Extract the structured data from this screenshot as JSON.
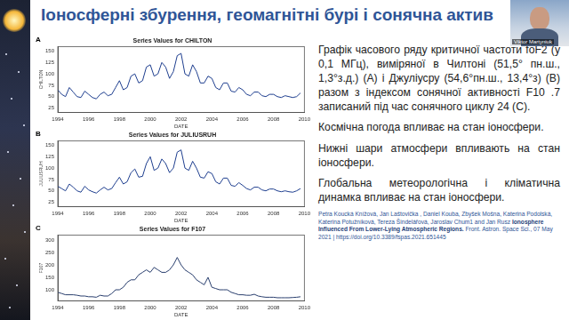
{
  "title": "Іоносферні збурення, геомагнітні бурі і сонячна актив",
  "video": {
    "name": "Viktor Martyniuk"
  },
  "paragraphs": [
    "Графік часового ряду критичної частоти foF2 (у 0,1 МГц), виміряної в Чилтоні (51,5° пн.ш., 1,3°з.д.) (A) і Джуліусру (54,6°пн.ш., 13,4°з) (B) разом з індексом сонячної активності F10 .7 записаний під час сонячного циклу 24 (C).",
    "Космічна погода впливає на стан іоносфери.",
    "Нижні шари атмосфери впливають на стан іоносфери.",
    "Глобальна метеорологічна і кліматична динамка впливає на стан іоносфери."
  ],
  "citation": {
    "authors": "Petra Koucká Knížová, Jan Laštovička , Daniel Kouba, Zbyšek Mošna, Katerina Podolská, Katerina Potužníková, Tereza Šindelářová, Jaroslav Chum1 and Jan Rusz",
    "article": "Ionosphere Influenced From Lower-Lying Atmospheric Regions.",
    "rest": "Front. Astron. Space Sci., 07 May 2021 | https://doi.org/10.3389/fspas.2021.651445"
  },
  "chart_data": [
    {
      "type": "line",
      "panel": "A",
      "title": "Series Values for CHILTON",
      "x_label": "DATE",
      "y_label": "CHILTON",
      "color": "#1f3f8f",
      "grid": false,
      "x": [
        1994,
        1994.25,
        1994.5,
        1994.75,
        1995,
        1995.25,
        1995.5,
        1995.75,
        1996,
        1996.25,
        1996.5,
        1996.75,
        1997,
        1997.25,
        1997.5,
        1997.75,
        1998,
        1998.25,
        1998.5,
        1998.75,
        1999,
        1999.25,
        1999.5,
        1999.75,
        2000,
        2000.25,
        2000.5,
        2000.75,
        2001,
        2001.25,
        2001.5,
        2001.75,
        2002,
        2002.25,
        2002.5,
        2002.75,
        2003,
        2003.25,
        2003.5,
        2003.75,
        2004,
        2004.25,
        2004.5,
        2004.75,
        2005,
        2005.25,
        2005.5,
        2005.75,
        2006,
        2006.25,
        2006.5,
        2006.75,
        2007,
        2007.25,
        2007.5,
        2007.75,
        2008,
        2008.25,
        2008.5,
        2008.75,
        2009,
        2009.25,
        2009.5,
        2009.75
      ],
      "values": [
        65,
        55,
        50,
        70,
        60,
        50,
        48,
        62,
        55,
        48,
        45,
        55,
        60,
        52,
        55,
        70,
        85,
        65,
        70,
        95,
        100,
        80,
        85,
        115,
        120,
        95,
        100,
        125,
        115,
        90,
        105,
        140,
        145,
        100,
        95,
        120,
        105,
        80,
        80,
        95,
        90,
        70,
        65,
        80,
        80,
        62,
        60,
        70,
        65,
        55,
        52,
        60,
        60,
        52,
        50,
        55,
        55,
        50,
        48,
        52,
        50,
        48,
        50,
        58
      ],
      "xlim": [
        1994,
        2010
      ],
      "xticks": [
        1994,
        1996,
        1998,
        2000,
        2002,
        2004,
        2006,
        2008,
        2010
      ],
      "ylim": [
        15,
        160
      ],
      "yticks": [
        25,
        50,
        75,
        100,
        125,
        150
      ]
    },
    {
      "type": "line",
      "panel": "B",
      "title": "Series Values for JULIUSRUH",
      "x_label": "DATE",
      "y_label": "JULIUSRUH",
      "color": "#1f3f8f",
      "grid": false,
      "x": [
        1994,
        1994.25,
        1994.5,
        1994.75,
        1995,
        1995.25,
        1995.5,
        1995.75,
        1996,
        1996.25,
        1996.5,
        1996.75,
        1997,
        1997.25,
        1997.5,
        1997.75,
        1998,
        1998.25,
        1998.5,
        1998.75,
        1999,
        1999.25,
        1999.5,
        1999.75,
        2000,
        2000.25,
        2000.5,
        2000.75,
        2001,
        2001.25,
        2001.5,
        2001.75,
        2002,
        2002.25,
        2002.5,
        2002.75,
        2003,
        2003.25,
        2003.5,
        2003.75,
        2004,
        2004.25,
        2004.5,
        2004.75,
        2005,
        2005.25,
        2005.5,
        2005.75,
        2006,
        2006.25,
        2006.5,
        2006.75,
        2007,
        2007.25,
        2007.5,
        2007.75,
        2008,
        2008.25,
        2008.5,
        2008.75,
        2009,
        2009.25,
        2009.5,
        2009.75
      ],
      "values": [
        60,
        55,
        50,
        65,
        58,
        50,
        47,
        60,
        52,
        48,
        45,
        52,
        58,
        52,
        55,
        68,
        80,
        65,
        70,
        90,
        98,
        80,
        82,
        110,
        125,
        95,
        100,
        120,
        110,
        90,
        100,
        135,
        140,
        100,
        95,
        115,
        100,
        80,
        78,
        92,
        88,
        70,
        65,
        78,
        78,
        62,
        60,
        68,
        62,
        55,
        52,
        58,
        58,
        52,
        50,
        54,
        54,
        50,
        48,
        50,
        48,
        47,
        50,
        55
      ],
      "xlim": [
        1994,
        2010
      ],
      "xticks": [
        1994,
        1996,
        1998,
        2000,
        2002,
        2004,
        2006,
        2008,
        2010
      ],
      "ylim": [
        15,
        160
      ],
      "yticks": [
        25,
        50,
        75,
        100,
        125,
        150
      ]
    },
    {
      "type": "line",
      "panel": "C",
      "title": "Series Values for F107",
      "x_label": "DATE",
      "y_label": "F107",
      "color": "#2a3f6e",
      "grid": false,
      "x": [
        1994,
        1994.25,
        1994.5,
        1994.75,
        1995,
        1995.25,
        1995.5,
        1995.75,
        1996,
        1996.25,
        1996.5,
        1996.75,
        1997,
        1997.25,
        1997.5,
        1997.75,
        1998,
        1998.25,
        1998.5,
        1998.75,
        1999,
        1999.25,
        1999.5,
        1999.75,
        2000,
        2000.25,
        2000.5,
        2000.75,
        2001,
        2001.25,
        2001.5,
        2001.75,
        2002,
        2002.25,
        2002.5,
        2002.75,
        2003,
        2003.25,
        2003.5,
        2003.75,
        2004,
        2004.25,
        2004.5,
        2004.75,
        2005,
        2005.25,
        2005.5,
        2005.75,
        2006,
        2006.25,
        2006.5,
        2006.75,
        2007,
        2007.25,
        2007.5,
        2007.75,
        2008,
        2008.25,
        2008.5,
        2008.75,
        2009,
        2009.25,
        2009.5,
        2009.75
      ],
      "values": [
        90,
        85,
        80,
        80,
        80,
        78,
        75,
        75,
        72,
        72,
        70,
        78,
        75,
        75,
        85,
        100,
        100,
        110,
        130,
        140,
        140,
        160,
        170,
        180,
        170,
        190,
        180,
        170,
        170,
        180,
        200,
        230,
        200,
        180,
        170,
        160,
        140,
        130,
        120,
        150,
        110,
        105,
        100,
        100,
        100,
        90,
        85,
        80,
        80,
        78,
        78,
        82,
        75,
        72,
        70,
        70,
        70,
        68,
        68,
        68,
        68,
        69,
        70,
        72
      ],
      "xlim": [
        1994,
        2010
      ],
      "xticks": [
        1994,
        1996,
        1998,
        2000,
        2002,
        2004,
        2006,
        2008,
        2010
      ],
      "ylim": [
        55,
        320
      ],
      "yticks": [
        100,
        150,
        200,
        250,
        300
      ]
    }
  ]
}
